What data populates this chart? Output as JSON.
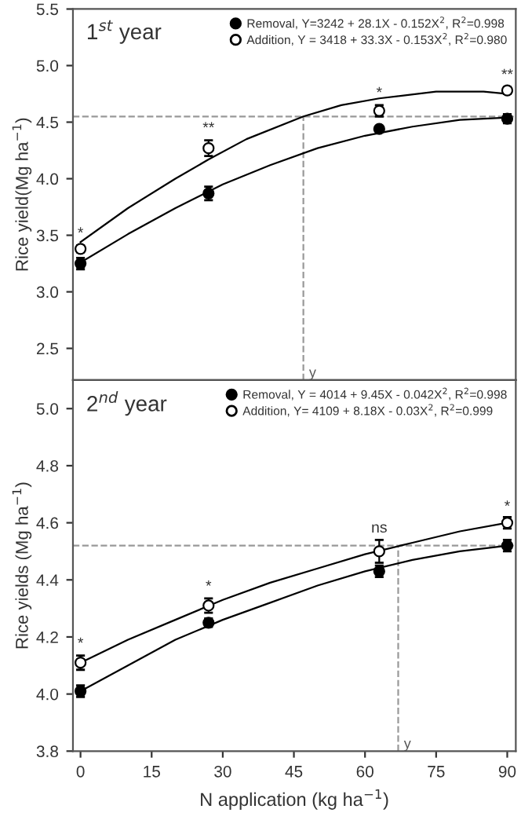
{
  "chart_data": [
    {
      "type": "scatter",
      "title": "1$^{st}$ year",
      "ylabel": "Rice yield(Mg ha$^{−1}$)",
      "xlim": [
        -1.6,
        91.8
      ],
      "ylim": [
        2.22,
        5.5
      ],
      "xticks": [
        0,
        15,
        30,
        45,
        60,
        75,
        90
      ],
      "yticks": [
        2.5,
        {
          "value": 3,
          "label": "3.0"
        },
        3.5,
        {
          "value": 4,
          "label": "4.0"
        },
        4.5,
        {
          "value": 5,
          "label": "5.0"
        },
        5.5
      ],
      "tick_labels": "y",
      "grid": false,
      "legend": "top right",
      "series": [
        {
          "name": "Removal, Y=3242 + 28.1X - 0.152X$^{2}$, R$^{2}$=0.998",
          "type": "scatter",
          "marker": "circle",
          "color": "#000000",
          "x": [
            0,
            27,
            63,
            90
          ],
          "values": [
            3.25,
            3.87,
            4.44,
            4.53
          ],
          "errors": [
            0.05,
            0.06,
            0.02,
            0.04
          ]
        },
        {
          "name": "Addition, Y = 3418 + 33.3X - 0.153X$^{2}$, R$^{2}$=0.980",
          "type": "scatter",
          "marker": "circle",
          "color": "#ffffff",
          "x": [
            0,
            27,
            63,
            90
          ],
          "values": [
            3.38,
            4.27,
            4.6,
            4.78
          ],
          "errors": [
            0.03,
            0.07,
            0.05,
            0.03
          ]
        },
        {
          "type": "line",
          "color": "#000000",
          "line_style": "solid",
          "x": [
            0,
            10,
            20,
            30,
            40,
            50,
            60,
            70,
            80,
            90
          ],
          "values": [
            3.26,
            3.51,
            3.74,
            3.95,
            4.12,
            4.27,
            4.38,
            4.46,
            4.52,
            4.54
          ]
        },
        {
          "type": "line",
          "color": "#000000",
          "line_style": "solid",
          "x": [
            0,
            10,
            20,
            27,
            35,
            47,
            55,
            63,
            75,
            85,
            90
          ],
          "values": [
            3.44,
            3.74,
            4.0,
            4.17,
            4.35,
            4.55,
            4.65,
            4.71,
            4.77,
            4.77,
            4.75
          ]
        }
      ],
      "ref_lines": [
        {
          "axis": "y",
          "value": 4.55,
          "color": "#999999",
          "line_style": "dashed"
        },
        {
          "axis": "x",
          "value": 47,
          "label": "y",
          "color": "#999999",
          "line_style": "dashed"
        }
      ],
      "annotations": [
        {
          "text": "*",
          "x": 0,
          "y": 3.45
        },
        {
          "text": "**",
          "x": 27,
          "y": 4.38
        },
        {
          "text": "*",
          "x": 63,
          "y": 4.69
        },
        {
          "text": "**",
          "x": 90,
          "y": 4.85
        }
      ]
    },
    {
      "type": "scatter",
      "title": "2$^{nd}$ year",
      "ylabel": "Rice yields (Mg ha$^{−1}$)",
      "xlabel": "N application (kg ha$^{−1}$)",
      "xlim": [
        -1.6,
        91.8
      ],
      "ylim": [
        3.8,
        5.1
      ],
      "xticks": [
        0,
        15,
        30,
        45,
        60,
        75,
        90
      ],
      "yticks": [
        3.8,
        {
          "value": 4,
          "label": "4.0"
        },
        4.2,
        4.4,
        4.6,
        4.8,
        {
          "value": 5,
          "label": "5.0"
        }
      ],
      "grid": false,
      "legend": "top right",
      "series": [
        {
          "name": "Removal, Y = 4014 + 9.45X - 0.042X$^{2}$, R$^{2}$=0.998",
          "type": "scatter",
          "marker": "circle",
          "color": "#000000",
          "x": [
            0,
            27,
            63,
            90
          ],
          "values": [
            4.01,
            4.25,
            4.43,
            4.52
          ],
          "errors": [
            0.02,
            0.015,
            0.02,
            0.02
          ]
        },
        {
          "name": "Addition, Y= 4109 + 8.18X - 0.03X$^{2}$, R$^{2}$=0.999",
          "type": "scatter",
          "marker": "circle",
          "color": "#ffffff",
          "x": [
            0,
            27,
            63,
            90
          ],
          "values": [
            4.11,
            4.31,
            4.5,
            4.6
          ],
          "errors": [
            0.025,
            0.025,
            0.04,
            0.02
          ]
        },
        {
          "type": "line",
          "color": "#000000",
          "line_style": "solid",
          "x": [
            0,
            10,
            20,
            30,
            40,
            50,
            60,
            70,
            80,
            90
          ],
          "values": [
            4.01,
            4.1,
            4.19,
            4.26,
            4.32,
            4.38,
            4.43,
            4.47,
            4.5,
            4.52
          ]
        },
        {
          "type": "line",
          "color": "#000000",
          "line_style": "solid",
          "x": [
            0,
            10,
            20,
            30,
            40,
            50,
            60,
            70,
            80,
            90
          ],
          "values": [
            4.11,
            4.19,
            4.26,
            4.33,
            4.39,
            4.44,
            4.49,
            4.53,
            4.57,
            4.6
          ]
        }
      ],
      "ref_lines": [
        {
          "axis": "y",
          "value": 4.52,
          "color": "#999999",
          "line_style": "dashed"
        },
        {
          "axis": "x",
          "value": 67,
          "label": "y",
          "color": "#999999",
          "line_style": "dashed"
        }
      ],
      "annotations": [
        {
          "text": "*",
          "x": 0,
          "y": 4.15
        },
        {
          "text": "*",
          "x": 27,
          "y": 4.35
        },
        {
          "text": "ns",
          "x": 63,
          "y": 4.555
        },
        {
          "text": "*",
          "x": 90,
          "y": 4.63
        }
      ]
    }
  ]
}
